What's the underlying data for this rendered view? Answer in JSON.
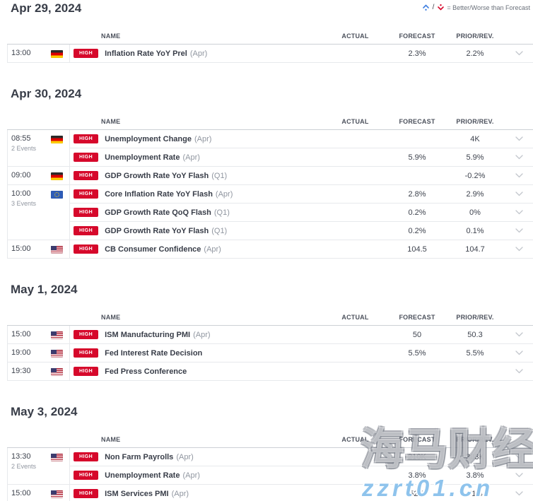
{
  "legend": {
    "separator": "/",
    "text": "= Better/Worse than Forecast",
    "better_color": "#3d7de0",
    "worse_color": "#d6082b"
  },
  "columns": {
    "name": "NAME",
    "actual": "ACTUAL",
    "forecast": "FORECAST",
    "prior": "PRIOR/REV."
  },
  "impact_label": "HIGH",
  "colors": {
    "impact_high": "#d6082b",
    "text_dark": "#383d48",
    "text_gray": "#9096a0",
    "row_border": "#e7e9ec",
    "watermark_blue": "#8ec3ec"
  },
  "watermark": {
    "line1": "海马财经",
    "line2": "zzrt01.cn"
  },
  "sections": [
    {
      "date": "Apr 29, 2024",
      "groups": [
        {
          "time": "13:00",
          "note": "",
          "country": "de",
          "events": [
            {
              "name": "Inflation Rate YoY Prel",
              "period": "(Apr)",
              "actual": "",
              "forecast": "2.3%",
              "prior": "2.2%"
            }
          ]
        }
      ]
    },
    {
      "date": "Apr 30, 2024",
      "groups": [
        {
          "time": "08:55",
          "note": "2 Events",
          "country": "de",
          "events": [
            {
              "name": "Unemployment Change",
              "period": "(Apr)",
              "actual": "",
              "forecast": "",
              "prior": "4K"
            },
            {
              "name": "Unemployment Rate",
              "period": "(Apr)",
              "actual": "",
              "forecast": "5.9%",
              "prior": "5.9%"
            }
          ]
        },
        {
          "time": "09:00",
          "note": "",
          "country": "de",
          "events": [
            {
              "name": "GDP Growth Rate YoY Flash",
              "period": "(Q1)",
              "actual": "",
              "forecast": "",
              "prior": "-0.2%"
            }
          ]
        },
        {
          "time": "10:00",
          "note": "3 Events",
          "country": "eu",
          "events": [
            {
              "name": "Core Inflation Rate YoY Flash",
              "period": "(Apr)",
              "actual": "",
              "forecast": "2.8%",
              "prior": "2.9%"
            },
            {
              "name": "GDP Growth Rate QoQ Flash",
              "period": "(Q1)",
              "actual": "",
              "forecast": "0.2%",
              "prior": "0%"
            },
            {
              "name": "GDP Growth Rate YoY Flash",
              "period": "(Q1)",
              "actual": "",
              "forecast": "0.2%",
              "prior": "0.1%"
            }
          ]
        },
        {
          "time": "15:00",
          "note": "",
          "country": "us",
          "events": [
            {
              "name": "CB Consumer Confidence",
              "period": "(Apr)",
              "actual": "",
              "forecast": "104.5",
              "prior": "104.7"
            }
          ]
        }
      ]
    },
    {
      "date": "May 1, 2024",
      "groups": [
        {
          "time": "15:00",
          "note": "",
          "country": "us",
          "events": [
            {
              "name": "ISM Manufacturing PMI",
              "period": "(Apr)",
              "actual": "",
              "forecast": "50",
              "prior": "50.3"
            }
          ]
        },
        {
          "time": "19:00",
          "note": "",
          "country": "us",
          "events": [
            {
              "name": "Fed Interest Rate Decision",
              "period": "",
              "actual": "",
              "forecast": "5.5%",
              "prior": "5.5%"
            }
          ]
        },
        {
          "time": "19:30",
          "note": "",
          "country": "us",
          "events": [
            {
              "name": "Fed Press Conference",
              "period": "",
              "actual": "",
              "forecast": "",
              "prior": ""
            }
          ]
        }
      ]
    },
    {
      "date": "May 3, 2024",
      "groups": [
        {
          "time": "13:30",
          "note": "2 Events",
          "country": "us",
          "events": [
            {
              "name": "Non Farm Payrolls",
              "period": "(Apr)",
              "actual": "",
              "forecast": "210K",
              "prior": "303K"
            },
            {
              "name": "Unemployment Rate",
              "period": "(Apr)",
              "actual": "",
              "forecast": "3.8%",
              "prior": "3.8%"
            }
          ]
        },
        {
          "time": "15:00",
          "note": "",
          "country": "us",
          "events": [
            {
              "name": "ISM Services PMI",
              "period": "(Apr)",
              "actual": "",
              "forecast": "52.3",
              "prior": "51.4"
            }
          ]
        }
      ]
    }
  ]
}
